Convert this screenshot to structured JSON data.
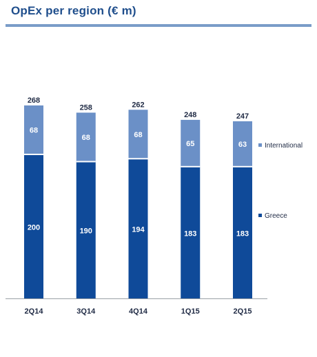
{
  "title": "OpEx per region (€ m)",
  "colors": {
    "title": "#1f4e8c",
    "rule": "#7a9cc8",
    "greece": "#0f4a99",
    "international": "#6b90c7",
    "axis": "#9aa0a6",
    "total_label": "#1f2a44"
  },
  "chart_data": {
    "type": "bar",
    "stacked": true,
    "categories": [
      "2Q14",
      "3Q14",
      "4Q14",
      "1Q15",
      "2Q15"
    ],
    "series": [
      {
        "name": "Greece",
        "values": [
          200,
          190,
          194,
          183,
          183
        ]
      },
      {
        "name": "International",
        "values": [
          68,
          68,
          68,
          65,
          63
        ]
      }
    ],
    "totals": [
      268,
      258,
      262,
      248,
      247
    ],
    "legend": [
      "International",
      "Greece"
    ],
    "legend_position": "right",
    "grid": false,
    "ylim": [
      0,
      280
    ]
  }
}
